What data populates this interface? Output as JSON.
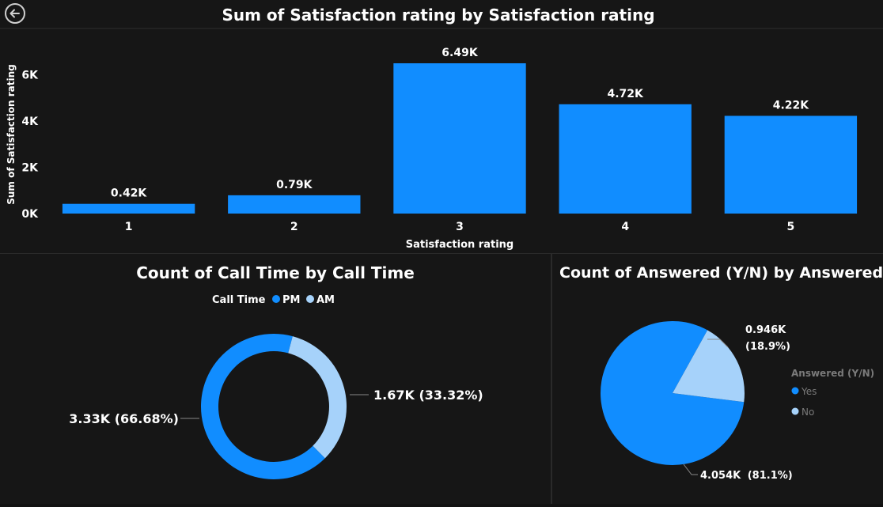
{
  "colors": {
    "background": "#161616",
    "bar": "#118dff",
    "pm": "#118dff",
    "am": "#a6d2fa",
    "yes": "#118dff",
    "no": "#a6d2fa",
    "text": "#ffffff",
    "muted": "#7a7a7a"
  },
  "icons": {
    "back": "arrow-left-circle-icon"
  },
  "chart_data": [
    {
      "type": "bar",
      "title": "Sum of Satisfaction rating by Satisfaction rating",
      "xlabel": "Satisfaction rating",
      "ylabel": "Sum of Satisfaction rating",
      "categories": [
        "1",
        "2",
        "3",
        "4",
        "5"
      ],
      "values": [
        420,
        790,
        6490,
        4720,
        4220
      ],
      "data_labels": [
        "0.42K",
        "0.79K",
        "6.49K",
        "4.72K",
        "4.22K"
      ],
      "yticks": [
        "0K",
        "2K",
        "4K",
        "6K"
      ],
      "ytick_values": [
        0,
        2000,
        4000,
        6000
      ],
      "ylim": [
        0,
        6490
      ],
      "grid": false
    },
    {
      "type": "donut",
      "title": "Count of Call Time by Call Time",
      "legend_title": "Call Time",
      "legend_position": "top",
      "slices": [
        {
          "name": "PM",
          "value": 3330,
          "percent": 66.68,
          "label": "3.33K (66.68%)"
        },
        {
          "name": "AM",
          "value": 1670,
          "percent": 33.32,
          "label": "1.67K (33.32%)"
        }
      ]
    },
    {
      "type": "pie",
      "title": "Count of Answered (Y/N) by Answered (Y/N)",
      "legend_title": "Answered (Y/N)",
      "legend_position": "right",
      "slices": [
        {
          "name": "Yes",
          "value": 4054,
          "percent": 81.1,
          "label_value": "4.054K",
          "label_percent": "(81.1%)"
        },
        {
          "name": "No",
          "value": 946,
          "percent": 18.9,
          "label_value": "0.946K",
          "label_percent": "(18.9%)"
        }
      ]
    }
  ]
}
